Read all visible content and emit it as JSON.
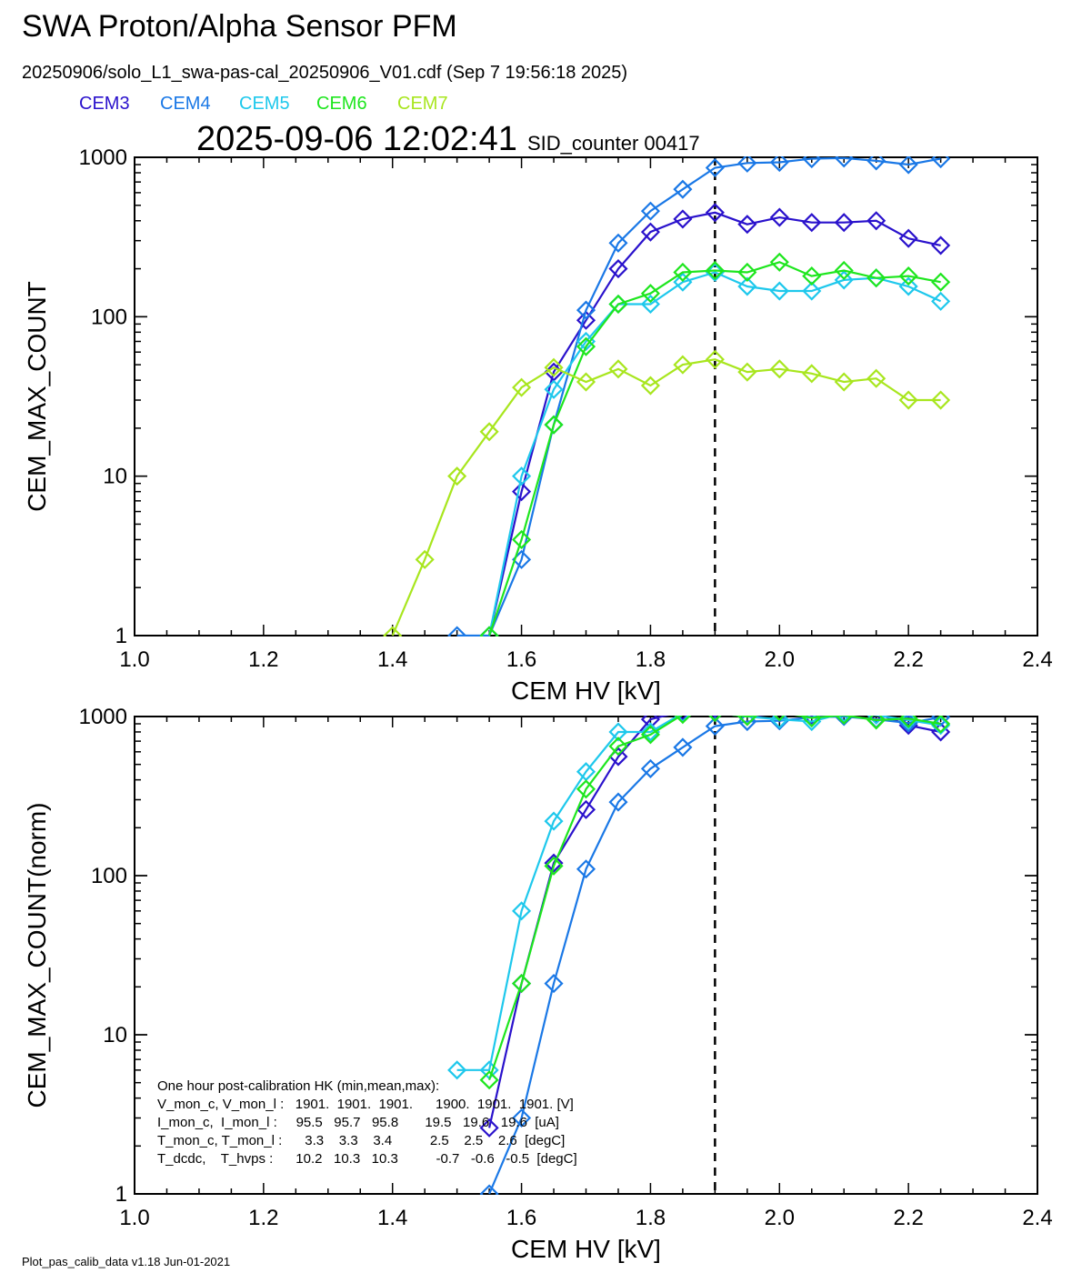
{
  "page": {
    "title": "SWA Proton/Alpha Sensor PFM",
    "file_info": "20250906/solo_L1_swa-pas-cal_20250906_V01.cdf  (Sep  7 19:56:18 2025)",
    "timestamp": "2025-09-06 12:02:41",
    "sid_counter": "SID_counter 00417",
    "footer": "Plot_pas_calib_data v1.18 Jun-01-2021"
  },
  "legend": [
    {
      "name": "CEM3",
      "color": "#2a12cc"
    },
    {
      "name": "CEM4",
      "color": "#1a78e6"
    },
    {
      "name": "CEM5",
      "color": "#1ec8ec"
    },
    {
      "name": "CEM6",
      "color": "#1ee61e"
    },
    {
      "name": "CEM7",
      "color": "#a8e61e"
    }
  ],
  "chart_data": [
    {
      "type": "line",
      "xlabel": "CEM HV [kV]",
      "ylabel": "CEM_MAX_COUNT",
      "xlim": [
        1.0,
        2.4
      ],
      "ylim": [
        1,
        1000
      ],
      "yscale": "log",
      "xticks": [
        "1.0",
        "1.2",
        "1.4",
        "1.6",
        "1.8",
        "2.0",
        "2.2",
        "2.4"
      ],
      "yticks": [
        "1",
        "10",
        "100",
        "1000"
      ],
      "vline": 1.9,
      "series": [
        {
          "name": "CEM3",
          "color": "#2a12cc",
          "x": [
            1.55,
            1.6,
            1.65,
            1.7,
            1.75,
            1.8,
            1.85,
            1.9,
            1.95,
            2.0,
            2.05,
            2.1,
            2.15,
            2.2,
            2.25
          ],
          "y": [
            1,
            8,
            45,
            95,
            200,
            340,
            410,
            450,
            380,
            420,
            390,
            390,
            400,
            310,
            280
          ]
        },
        {
          "name": "CEM4",
          "color": "#1a78e6",
          "x": [
            1.5,
            1.55,
            1.6,
            1.65,
            1.7,
            1.75,
            1.8,
            1.85,
            1.9,
            1.95,
            2.0,
            2.05,
            2.1,
            2.15,
            2.2,
            2.25
          ],
          "y": [
            1,
            1,
            3,
            21,
            110,
            290,
            460,
            630,
            860,
            920,
            930,
            980,
            990,
            950,
            900,
            980
          ]
        },
        {
          "name": "CEM5",
          "color": "#1ec8ec",
          "x": [
            1.55,
            1.6,
            1.65,
            1.7,
            1.75,
            1.8,
            1.85,
            1.9,
            1.95,
            2.0,
            2.05,
            2.1,
            2.15,
            2.2,
            2.25
          ],
          "y": [
            1,
            10,
            35,
            70,
            120,
            120,
            165,
            190,
            155,
            145,
            145,
            170,
            175,
            155,
            125
          ]
        },
        {
          "name": "CEM6",
          "color": "#1ee61e",
          "x": [
            1.55,
            1.6,
            1.65,
            1.7,
            1.75,
            1.8,
            1.85,
            1.9,
            1.95,
            2.0,
            2.05,
            2.1,
            2.15,
            2.2,
            2.25
          ],
          "y": [
            1,
            4,
            21,
            65,
            120,
            140,
            190,
            195,
            190,
            220,
            180,
            195,
            175,
            180,
            165
          ]
        },
        {
          "name": "CEM7",
          "color": "#a8e61e",
          "x": [
            1.4,
            1.45,
            1.5,
            1.55,
            1.6,
            1.65,
            1.7,
            1.75,
            1.8,
            1.85,
            1.9,
            1.95,
            2.0,
            2.05,
            2.1,
            2.15,
            2.2,
            2.25
          ],
          "y": [
            1,
            3,
            10,
            19,
            36,
            48,
            39,
            47,
            37,
            50,
            54,
            45,
            47,
            44,
            39,
            41,
            30,
            30
          ]
        }
      ]
    },
    {
      "type": "line",
      "xlabel": "CEM HV [kV]",
      "ylabel": "CEM_MAX_COUNT(norm)",
      "xlim": [
        1.0,
        2.4
      ],
      "ylim": [
        1,
        1000
      ],
      "yscale": "log",
      "xticks": [
        "1.0",
        "1.2",
        "1.4",
        "1.6",
        "1.8",
        "2.0",
        "2.2",
        "2.4"
      ],
      "yticks": [
        "1",
        "10",
        "100",
        "1000"
      ],
      "vline": 1.9,
      "series": [
        {
          "name": "CEM3",
          "color": "#2a12cc",
          "x": [
            1.55,
            1.6,
            1.65,
            1.7,
            1.75,
            1.8,
            1.85,
            1.9,
            1.95,
            2.0,
            2.05,
            2.1,
            2.15,
            2.2,
            2.25
          ],
          "y": [
            2.6,
            21,
            120,
            260,
            560,
            960,
            1080,
            1120,
            1000,
            1050,
            1010,
            1020,
            1050,
            880,
            800
          ]
        },
        {
          "name": "CEM4",
          "color": "#1a78e6",
          "x": [
            1.55,
            1.6,
            1.65,
            1.7,
            1.75,
            1.8,
            1.85,
            1.9,
            1.95,
            2.0,
            2.05,
            2.1,
            2.15,
            2.2,
            2.25
          ],
          "y": [
            1,
            3,
            21,
            110,
            290,
            470,
            640,
            870,
            930,
            940,
            990,
            1000,
            960,
            910,
            990
          ]
        },
        {
          "name": "CEM5",
          "color": "#1ec8ec",
          "x": [
            1.5,
            1.55,
            1.6,
            1.65,
            1.7,
            1.75,
            1.8,
            1.85,
            1.9,
            1.95,
            2.0,
            2.05,
            2.1,
            2.15,
            2.2,
            2.25
          ],
          "y": [
            6,
            6,
            60,
            220,
            450,
            800,
            800,
            1050,
            1060,
            1000,
            960,
            930,
            1050,
            1020,
            950,
            880
          ]
        },
        {
          "name": "CEM6",
          "color": "#1ee61e",
          "x": [
            1.55,
            1.6,
            1.65,
            1.7,
            1.75,
            1.8,
            1.85,
            1.9,
            1.95,
            2.0,
            2.05,
            2.1,
            2.15,
            2.2,
            2.25
          ],
          "y": [
            5.2,
            21,
            115,
            350,
            650,
            770,
            1030,
            1060,
            1000,
            1070,
            980,
            1020,
            950,
            970,
            900
          ]
        }
      ],
      "hk_lines": [
        "One hour post-calibration HK (min,mean,max):",
        "V_mon_c, V_mon_l :   1901.  1901.  1901.      1900.  1901.  1901. [V]",
        "I_mon_c,  I_mon_l :     95.5   95.7   95.8       19.5   19.6   19.6  [uA]",
        "T_mon_c, T_mon_l :      3.3    3.3    3.4          2.5    2.5    2.6  [degC]",
        "T_dcdc,    T_hvps :      10.2   10.3   10.3          -0.7   -0.6   -0.5  [degC]"
      ]
    }
  ]
}
